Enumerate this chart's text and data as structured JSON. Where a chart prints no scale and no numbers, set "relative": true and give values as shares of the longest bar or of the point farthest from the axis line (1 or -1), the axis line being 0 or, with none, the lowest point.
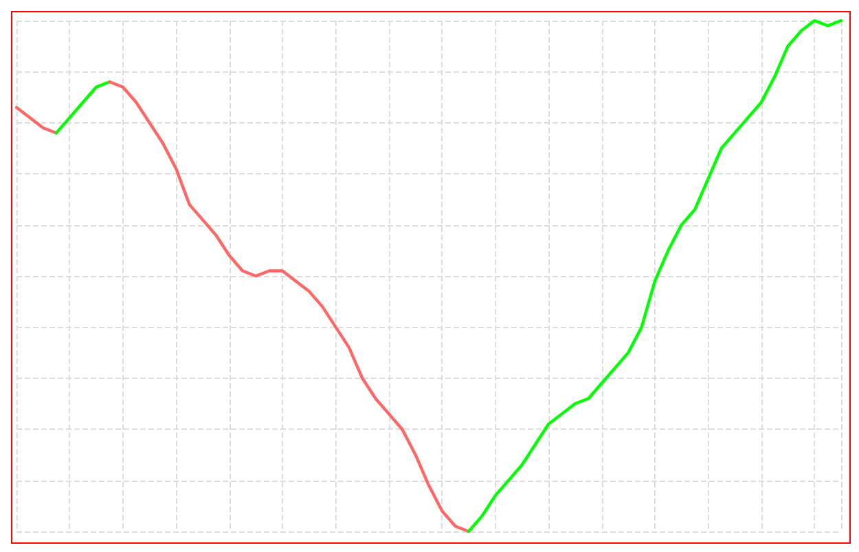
{
  "chart_data": {
    "type": "line",
    "relative": true,
    "grid": true,
    "marker": "none",
    "line_style": "solid",
    "categories": [
      null,
      null,
      null,
      null,
      null,
      null,
      null,
      null,
      null,
      null,
      null,
      null,
      null,
      null,
      null,
      null,
      null,
      null,
      null,
      null,
      null,
      null,
      null,
      null,
      null,
      null,
      null,
      null,
      null,
      null,
      null,
      null,
      null,
      null,
      null,
      null,
      null,
      null,
      null,
      null,
      null,
      null,
      null,
      null,
      null,
      null,
      null,
      null,
      null,
      null,
      null,
      null,
      null,
      null,
      null,
      null,
      null,
      null,
      null,
      null,
      null,
      null,
      null
    ],
    "series": [
      {
        "color": "#ff6666",
        "values": [
          0.83,
          0.81,
          0.79,
          0.78,
          null,
          null,
          null,
          null,
          null,
          null,
          null,
          null,
          null,
          null,
          null,
          null,
          null,
          null,
          null,
          null,
          null,
          null,
          null,
          null,
          null,
          null,
          null,
          null,
          null,
          null,
          null,
          null,
          null,
          null,
          null,
          null,
          null,
          null,
          null,
          null,
          null,
          null,
          null,
          null,
          null,
          null,
          null,
          null,
          null,
          null,
          null,
          null,
          null,
          null,
          null,
          null,
          null,
          null,
          null,
          null,
          null,
          null,
          null
        ]
      },
      {
        "color": "#00ff00",
        "values": [
          null,
          null,
          null,
          0.78,
          0.81,
          0.84,
          0.87,
          0.88,
          null,
          null,
          null,
          null,
          null,
          null,
          null,
          null,
          null,
          null,
          null,
          null,
          null,
          null,
          null,
          null,
          null,
          null,
          null,
          null,
          null,
          null,
          null,
          null,
          null,
          null,
          null,
          null,
          null,
          null,
          null,
          null,
          null,
          null,
          null,
          null,
          null,
          null,
          null,
          null,
          null,
          null,
          null,
          null,
          null,
          null,
          null,
          null,
          null,
          null,
          null,
          null,
          null,
          null,
          null
        ]
      },
      {
        "color": "#ff6666",
        "values": [
          null,
          null,
          null,
          null,
          null,
          null,
          null,
          0.88,
          0.87,
          0.84,
          0.8,
          0.76,
          0.71,
          0.64,
          0.61,
          0.58,
          0.54,
          0.51,
          0.5,
          0.51,
          0.51,
          0.49,
          0.47,
          0.44,
          0.4,
          0.36,
          0.3,
          0.26,
          0.23,
          0.2,
          0.15,
          0.09,
          0.04,
          0.01,
          0.0,
          null,
          null,
          null,
          null,
          null,
          null,
          null,
          null,
          null,
          null,
          null,
          null,
          null,
          null,
          null,
          null,
          null,
          null,
          null,
          null,
          null,
          null,
          null,
          null,
          null,
          null,
          null,
          null
        ]
      },
      {
        "color": "#00ff00",
        "values": [
          null,
          null,
          null,
          null,
          null,
          null,
          null,
          null,
          null,
          null,
          null,
          null,
          null,
          null,
          null,
          null,
          null,
          null,
          null,
          null,
          null,
          null,
          null,
          null,
          null,
          null,
          null,
          null,
          null,
          null,
          null,
          null,
          null,
          null,
          0.0,
          0.03,
          0.07,
          0.1,
          0.13,
          0.17,
          0.21,
          0.23,
          0.25,
          0.26,
          0.29,
          0.32,
          0.35,
          0.4,
          0.49,
          0.55,
          0.6,
          0.63,
          0.69,
          0.75,
          0.78,
          0.81,
          0.84,
          0.89,
          0.95,
          0.98,
          1.0,
          0.99,
          1.0
        ]
      }
    ]
  }
}
